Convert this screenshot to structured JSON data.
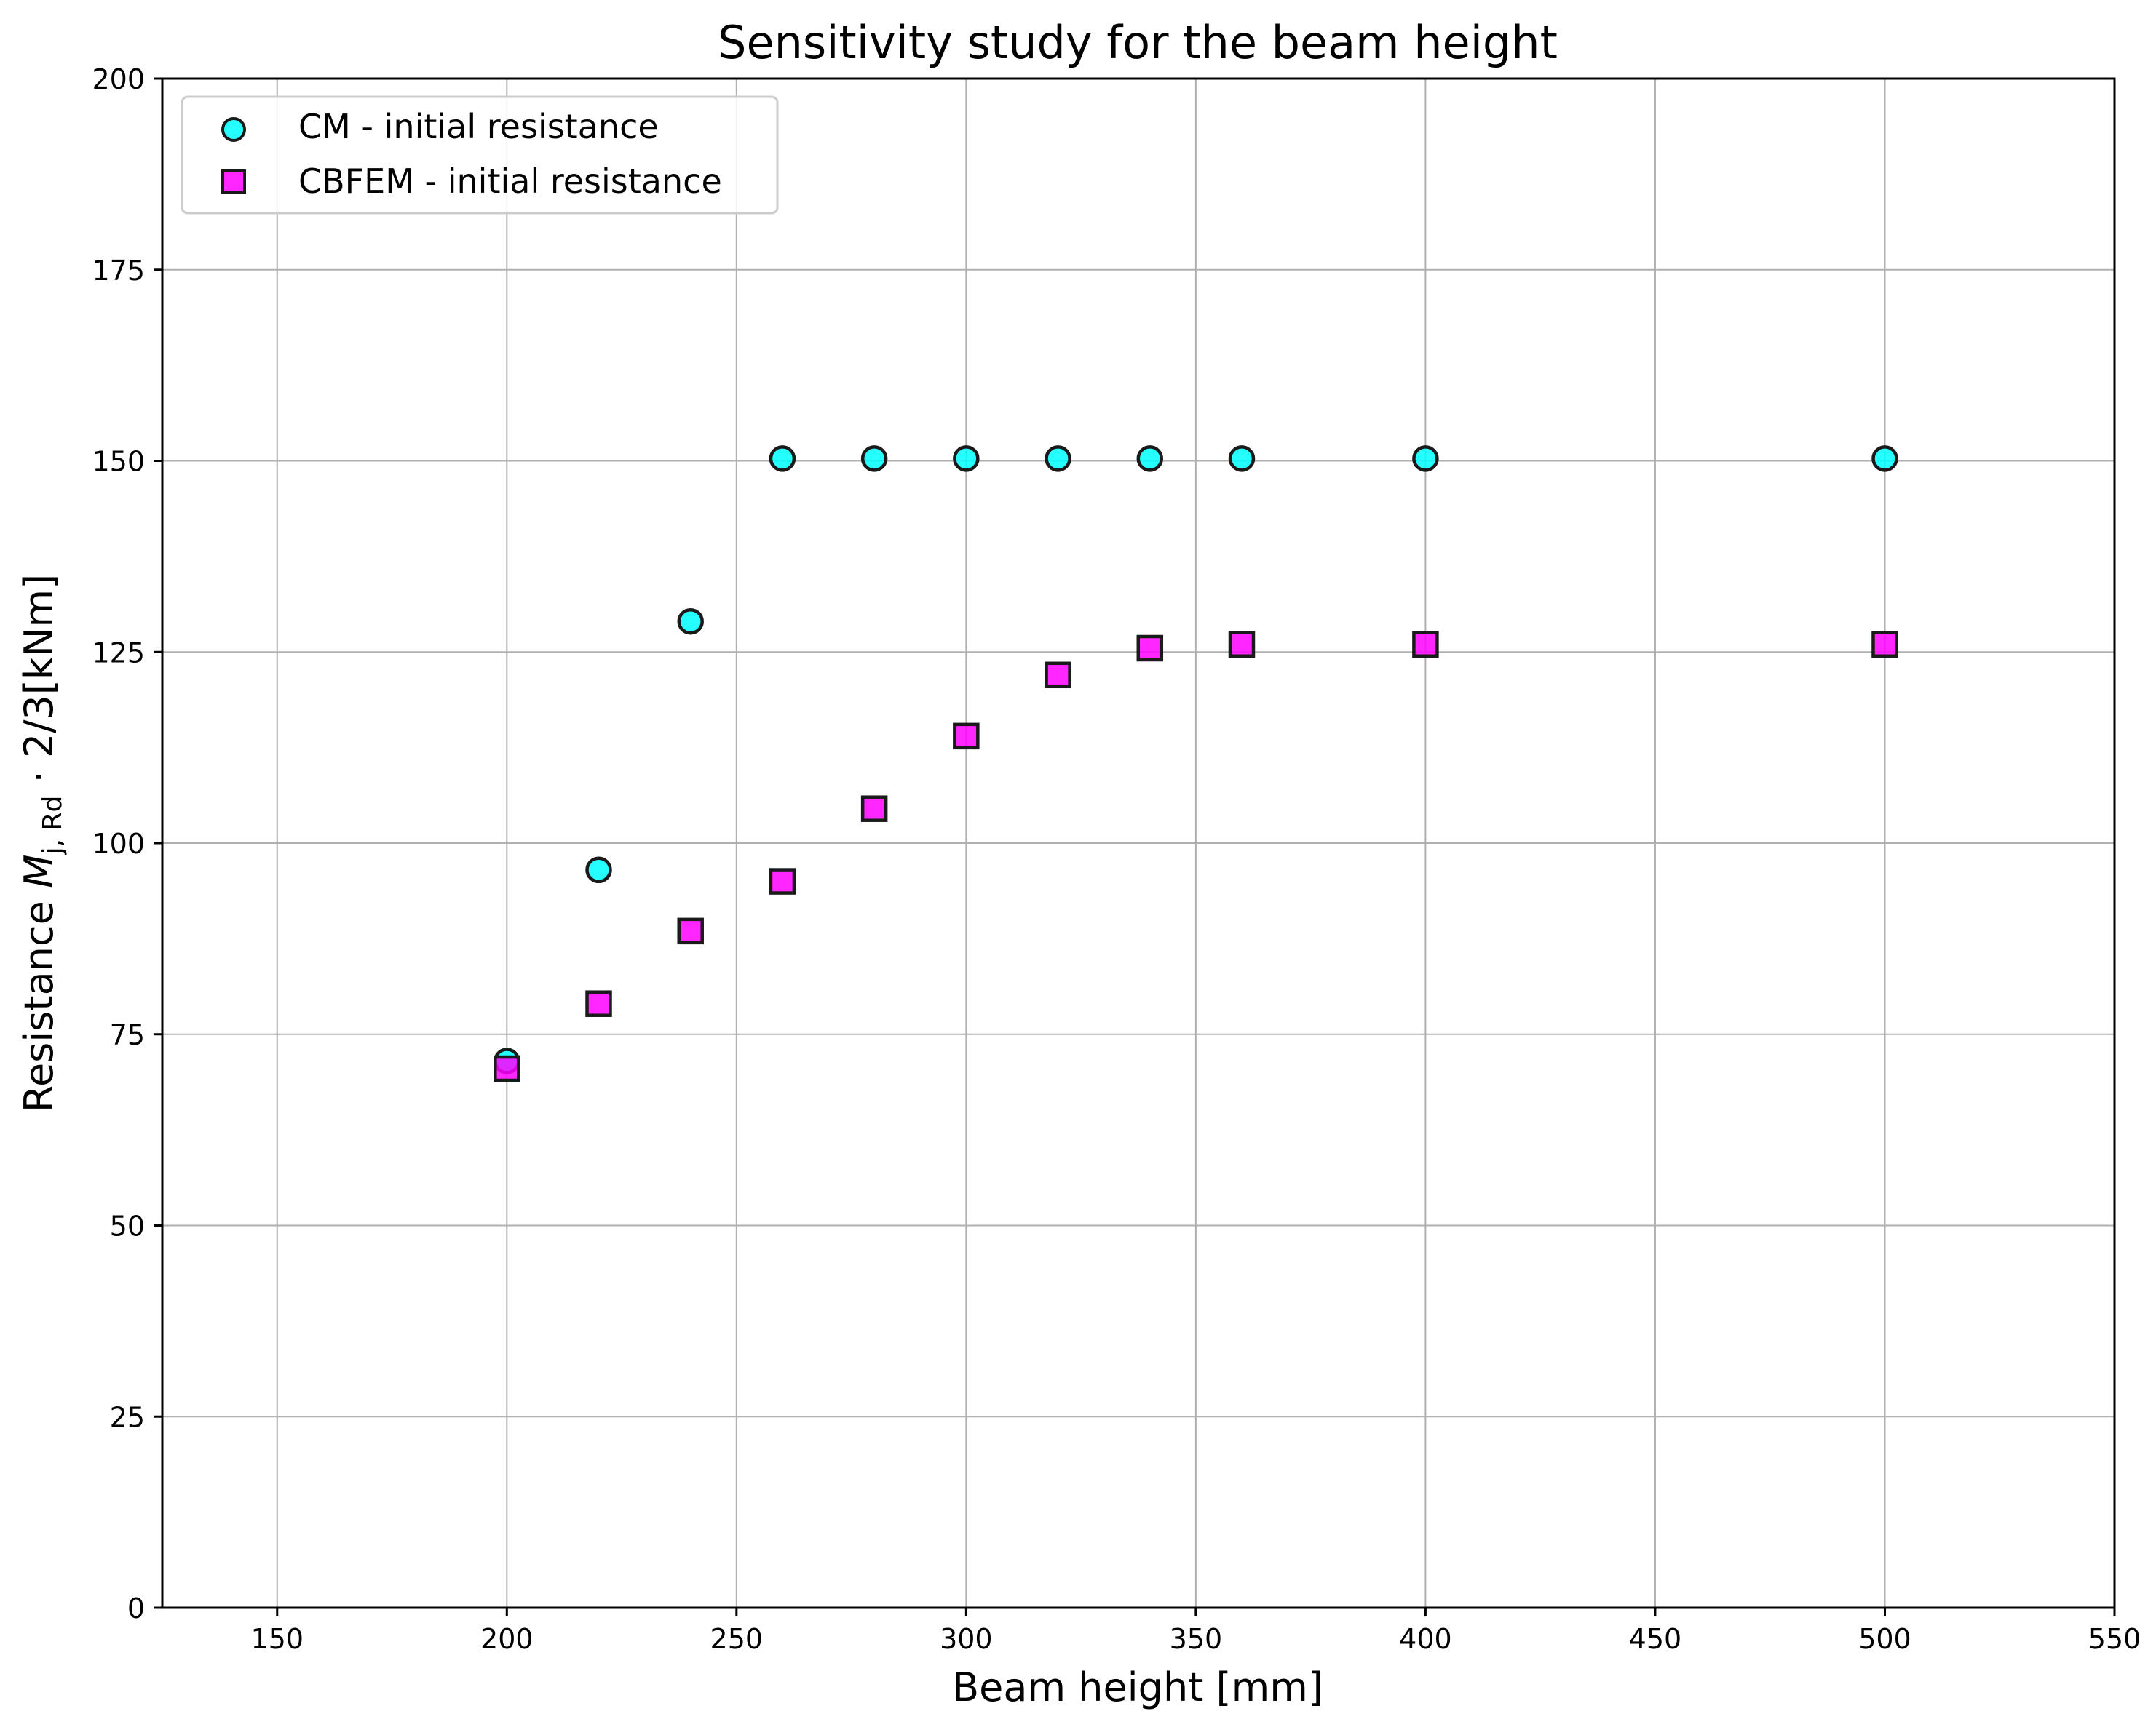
{
  "chart_data": {
    "type": "scatter",
    "title": "Sensitivity study for the beam height",
    "xlabel": "Beam height [mm]",
    "ylabel": {
      "prefix": "Resistance ",
      "symbol": "M",
      "subscript": "j, Rd",
      "suffix": " · 2/3[kNm]"
    },
    "xlim": [
      125,
      550
    ],
    "ylim": [
      0,
      200
    ],
    "xticks": [
      150,
      200,
      250,
      300,
      350,
      400,
      450,
      500,
      550
    ],
    "yticks": [
      0,
      25,
      50,
      75,
      100,
      125,
      150,
      175,
      200
    ],
    "grid": true,
    "legend_position": "upper-left",
    "series": [
      {
        "name": "CM - initial resistance",
        "marker": "circle",
        "color": "#00ffff",
        "edge_color": "#1a1a1a",
        "x": [
          200,
          220,
          240,
          260,
          280,
          300,
          320,
          340,
          360,
          400,
          500
        ],
        "y": [
          71.5,
          96.5,
          129.0,
          150.3,
          150.3,
          150.3,
          150.3,
          150.3,
          150.3,
          150.3,
          150.3
        ]
      },
      {
        "name": "CBFEM - initial resistance",
        "marker": "square",
        "color": "#ff00ff",
        "edge_color": "#1a1a1a",
        "x": [
          200,
          220,
          240,
          260,
          280,
          300,
          320,
          340,
          360,
          400,
          500
        ],
        "y": [
          70.5,
          79.0,
          88.5,
          95.0,
          104.5,
          114.0,
          122.0,
          125.5,
          126.0,
          126.0,
          126.0
        ]
      }
    ]
  }
}
